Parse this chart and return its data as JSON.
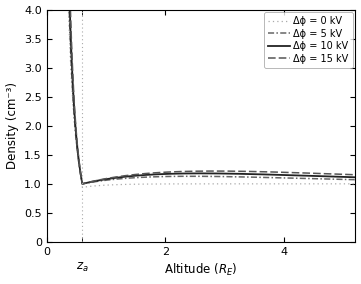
{
  "title": "",
  "xlabel": "Altitude (R_E)",
  "ylabel": "Density (cm⁻³)",
  "xlim": [
    0,
    5.2
  ],
  "ylim": [
    0,
    4.0
  ],
  "xtick_positions": [
    0,
    2,
    4
  ],
  "xtick_labels": [
    "0",
    "2",
    "4"
  ],
  "ytick_positions": [
    0,
    0.5,
    1.0,
    1.5,
    2.0,
    2.5,
    3.0,
    3.5,
    4.0
  ],
  "ytick_labels": [
    "0",
    "0.5",
    "1.0",
    "1.5",
    "2.0",
    "2.5",
    "3.0",
    "3.5",
    "4.0"
  ],
  "za": 0.6,
  "x_start": 0.05,
  "x_end": 5.2,
  "background_color": "#ffffff",
  "legend_entries": [
    {
      "label": "Δϕ = 0 kV",
      "linestyle": "dotted",
      "color": "#aaaaaa",
      "linewidth": 0.9
    },
    {
      "label": "Δϕ = 5 kV",
      "linestyle": "dashdot",
      "color": "#666666",
      "linewidth": 1.1
    },
    {
      "label": "Δϕ = 10 kV",
      "linestyle": "solid",
      "color": "#222222",
      "linewidth": 1.3
    },
    {
      "label": "Δϕ = 15 kV",
      "linestyle": "dashed",
      "color": "#555555",
      "linewidth": 1.1
    }
  ],
  "phi_values": [
    0,
    5,
    10,
    15
  ],
  "bump_params": {
    "0": {
      "height": 0.0,
      "decay": 1.5,
      "dip": 0.06,
      "dip_decay": 2.5
    },
    "5": {
      "height": 0.13,
      "decay": 0.55,
      "dip": 0.0,
      "dip_decay": 0.0
    },
    "10": {
      "height": 0.18,
      "decay": 0.5,
      "dip": 0.0,
      "dip_decay": 0.0
    },
    "15": {
      "height": 0.22,
      "decay": 0.45,
      "dip": 0.0,
      "dip_decay": 0.0
    }
  }
}
